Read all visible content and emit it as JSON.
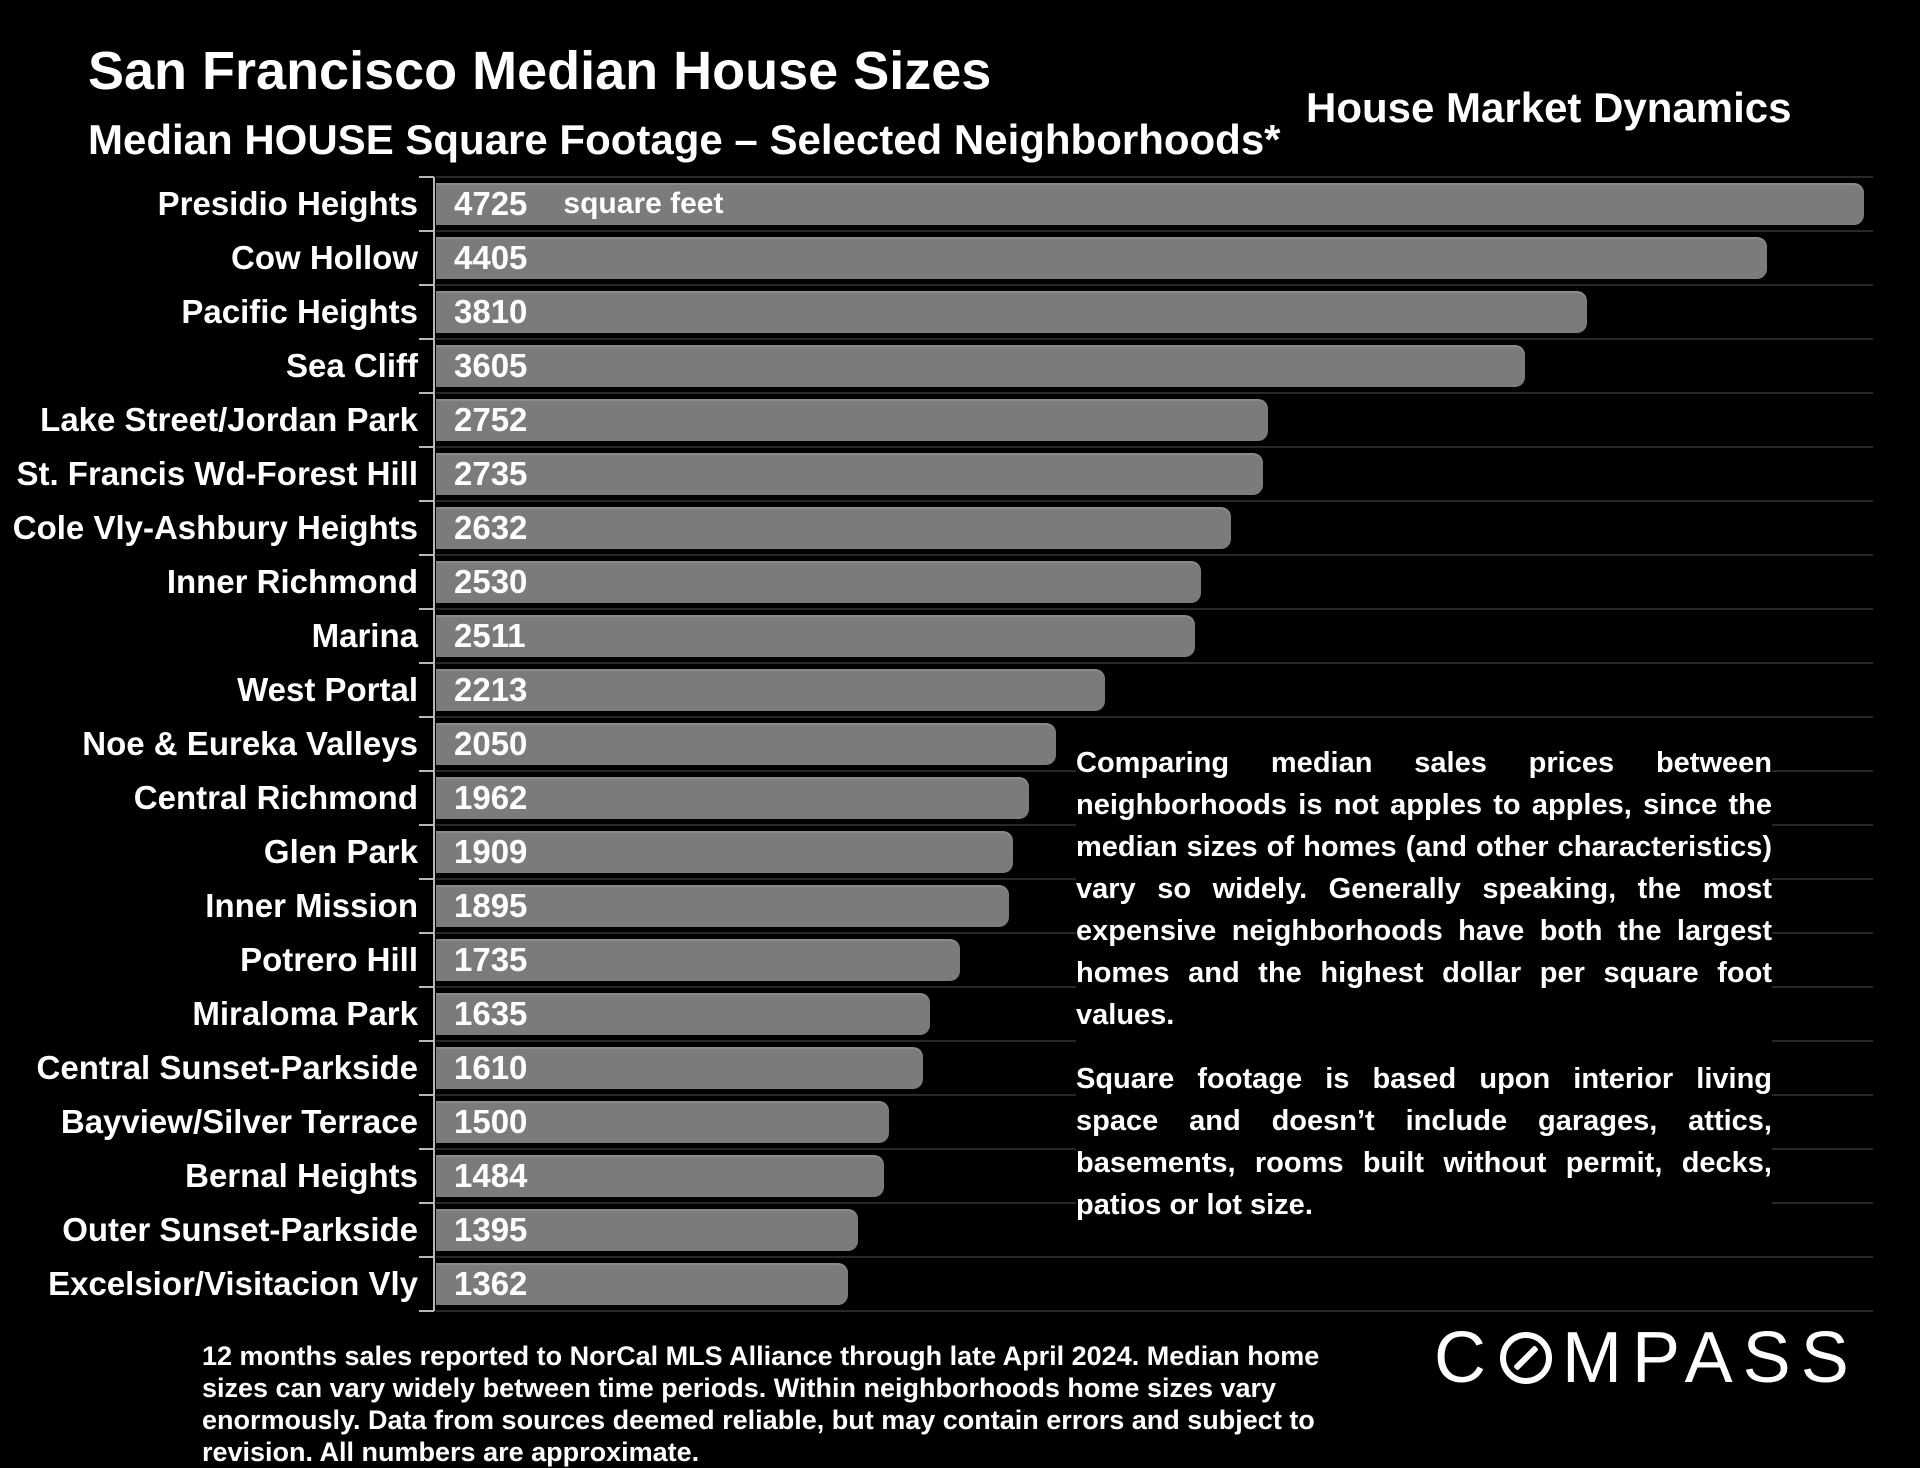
{
  "page": {
    "background": "#000000"
  },
  "header": {
    "title": "San Francisco Median House Sizes",
    "subtitle": "Median HOUSE Square Footage – Selected Neighborhoods*",
    "right_title": "House Market Dynamics"
  },
  "chart_data": {
    "type": "bar",
    "orientation": "horizontal",
    "title": "Median HOUSE Square Footage – Selected Neighborhoods*",
    "unit_label": "square feet",
    "categories": [
      "Presidio Heights",
      "Cow Hollow",
      "Pacific Heights",
      "Sea Cliff",
      "Lake Street/Jordan Park",
      "St. Francis Wd-Forest Hill",
      "Cole Vly-Ashbury Heights",
      "Inner Richmond",
      "Marina",
      "West Portal",
      "Noe & Eureka Valleys",
      "Central Richmond",
      "Glen Park",
      "Inner Mission",
      "Potrero Hill",
      "Miraloma Park",
      "Central Sunset-Parkside",
      "Bayview/Silver Terrace",
      "Bernal Heights",
      "Outer Sunset-Parkside",
      "Excelsior/Visitacion Vly"
    ],
    "values": [
      4725,
      4405,
      3810,
      3605,
      2752,
      2735,
      2632,
      2530,
      2511,
      2213,
      2050,
      1962,
      1909,
      1895,
      1735,
      1635,
      1610,
      1500,
      1484,
      1395,
      1362
    ],
    "xlim": [
      0,
      4755
    ],
    "bar_color": "#7b7b7b",
    "grid": "row-separator-lines",
    "value_labels": "inside-start",
    "legend": "none"
  },
  "side_text": {
    "paragraph1": "Comparing median sales prices between neighborhoods is not apples to apples, since the median sizes of homes (and other characteristics) vary so widely. Generally speaking, the most expensive neighborhoods have both the largest homes and the highest dollar per square foot values.",
    "paragraph2": "Square footage is based upon interior living space and doesn’t include garages, attics, basements, rooms built without permit, decks, patios or lot size."
  },
  "footnote": "12 months sales reported to NorCal MLS Alliance through late April 2024. Median home sizes can vary widely between time periods. Within neighborhoods home sizes vary enormously. Data from sources deemed reliable, but may contain errors and subject to revision. All numbers are approximate.",
  "logo": {
    "name": "COMPASS",
    "left": "C",
    "right": "MPASS"
  }
}
